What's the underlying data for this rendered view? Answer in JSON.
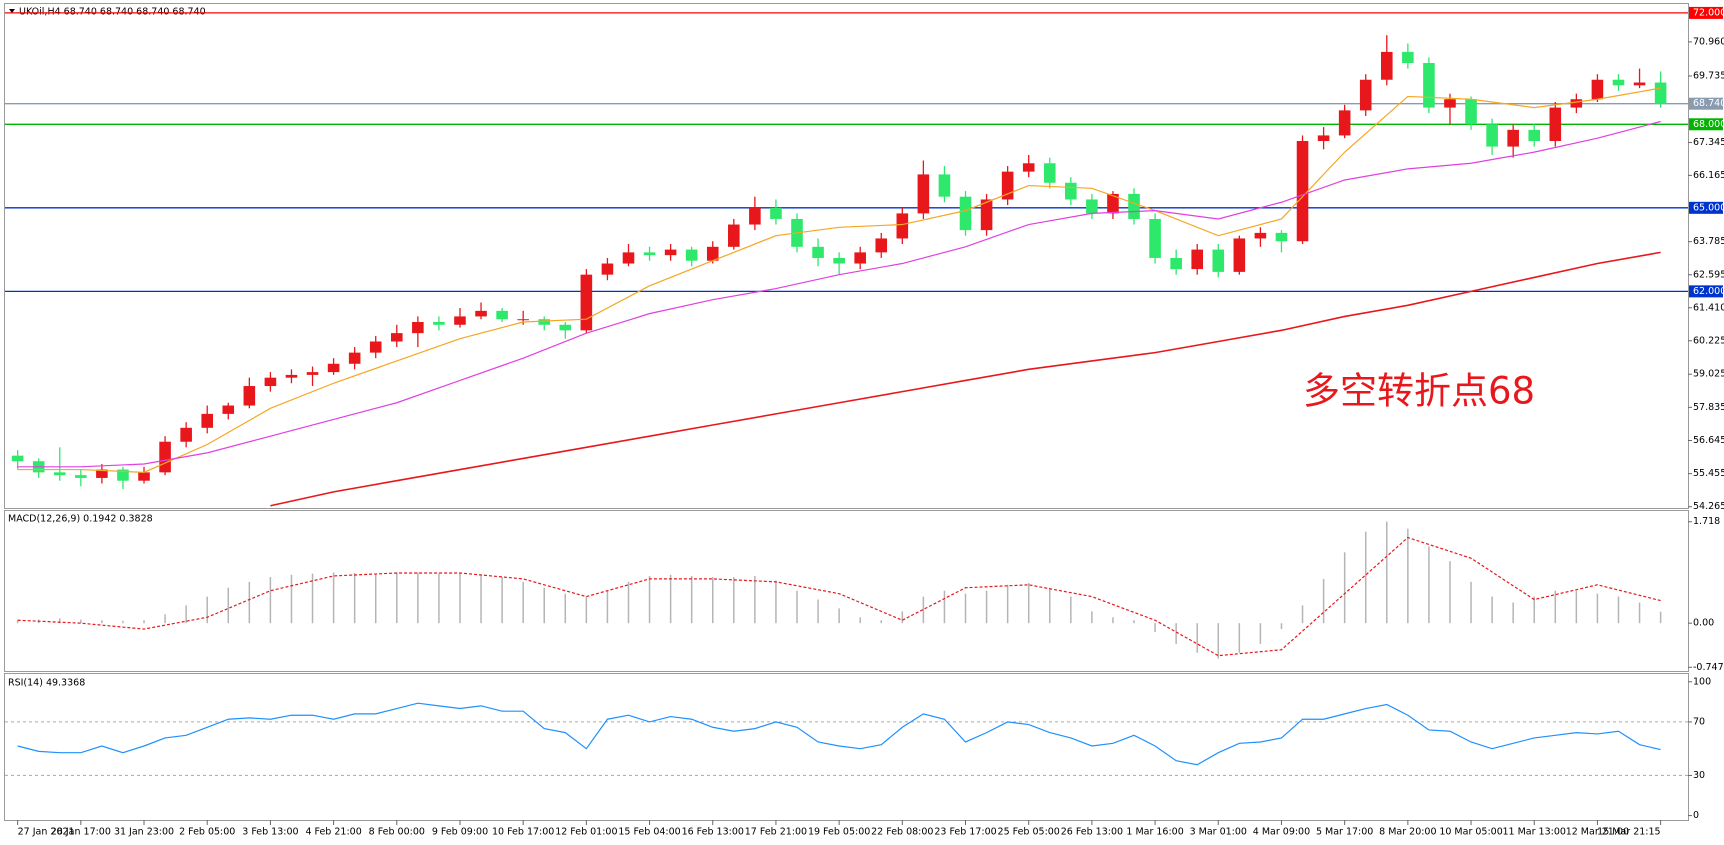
{
  "chart_data": [
    {
      "type": "candlestick",
      "title": "UKOil,H4 68.740 68.740 68.740 68.740",
      "annotation": "多空转折点68",
      "annotation_color": "#e8171b",
      "up_color": "#e8171b",
      "down_color": "#2ee86b",
      "xlim": [
        -0.6,
        79.3
      ],
      "ylim": [
        54.22,
        72.32
      ],
      "xticks": [
        {
          "value": 0,
          "label": "27 Jan 2021"
        },
        {
          "value": 3,
          "label": "28 Jan 17:00"
        },
        {
          "value": 6,
          "label": "31 Jan 23:00"
        },
        {
          "value": 9,
          "label": "2 Feb 05:00"
        },
        {
          "value": 12,
          "label": "3 Feb 13:00"
        },
        {
          "value": 15,
          "label": "4 Feb 21:00"
        },
        {
          "value": 18,
          "label": "8 Feb 00:00"
        },
        {
          "value": 21,
          "label": "9 Feb 09:00"
        },
        {
          "value": 24,
          "label": "10 Feb 17:00"
        },
        {
          "value": 27,
          "label": "12 Feb 01:00"
        },
        {
          "value": 30,
          "label": "15 Feb 04:00"
        },
        {
          "value": 33,
          "label": "16 Feb 13:00"
        },
        {
          "value": 36,
          "label": "17 Feb 21:00"
        },
        {
          "value": 39,
          "label": "19 Feb 05:00"
        },
        {
          "value": 42,
          "label": "22 Feb 08:00"
        },
        {
          "value": 45,
          "label": "23 Feb 17:00"
        },
        {
          "value": 48,
          "label": "25 Feb 05:00"
        },
        {
          "value": 51,
          "label": "26 Feb 13:00"
        },
        {
          "value": 54,
          "label": "1 Mar 16:00"
        },
        {
          "value": 57,
          "label": "3 Mar 01:00"
        },
        {
          "value": 60,
          "label": "4 Mar 09:00"
        },
        {
          "value": 63,
          "label": "5 Mar 17:00"
        },
        {
          "value": 66,
          "label": "8 Mar 20:00"
        },
        {
          "value": 69,
          "label": "10 Mar 05:00"
        },
        {
          "value": 72,
          "label": "11 Mar 13:00"
        },
        {
          "value": 75,
          "label": "12 Mar 21:00"
        },
        {
          "value": 78,
          "label": "15 Mar 21:15"
        }
      ],
      "yticks": [
        {
          "value": 70.96,
          "label": "70.960"
        },
        {
          "value": 69.735,
          "label": "69.735"
        },
        {
          "value": 67.345,
          "label": "67.345"
        },
        {
          "value": 66.165,
          "label": "66.165"
        },
        {
          "value": 63.785,
          "label": "63.785"
        },
        {
          "value": 62.595,
          "label": "62.595"
        },
        {
          "value": 61.41,
          "label": "61.410"
        },
        {
          "value": 60.225,
          "label": "60.225"
        },
        {
          "value": 59.025,
          "label": "59.025"
        },
        {
          "value": 57.835,
          "label": "57.835"
        },
        {
          "value": 56.645,
          "label": "56.645"
        },
        {
          "value": 55.455,
          "label": "55.455"
        },
        {
          "value": 54.265,
          "label": "54.265"
        }
      ],
      "levels": [
        {
          "value": 72,
          "label": "72.000",
          "color": "#ff0000"
        },
        {
          "value": 68.74,
          "label": "68.740",
          "color": "#8a9bb0"
        },
        {
          "value": 68,
          "label": "68.000",
          "color": "#00b400"
        },
        {
          "value": 65,
          "label": "65.000",
          "color": "#0033cc"
        },
        {
          "value": 62,
          "label": "62.000",
          "color": "#0033cc"
        }
      ],
      "series": [
        {
          "color": "#f5a623",
          "values": [
            55.6,
            55.6,
            55.5,
            56.5,
            57.8,
            58.7,
            59.5,
            60.3,
            60.9,
            61.0,
            62.2,
            63.1,
            64.0,
            64.3,
            64.4,
            64.9,
            65.8,
            65.7,
            64.9,
            64.0,
            64.6,
            67.0,
            69.0,
            68.9,
            68.6,
            68.9,
            69.3
          ]
        },
        {
          "color": "#e040e0",
          "values": [
            55.7,
            55.7,
            55.8,
            56.2,
            56.8,
            57.4,
            58.0,
            58.8,
            59.6,
            60.5,
            61.2,
            61.7,
            62.1,
            62.6,
            63.0,
            63.6,
            64.4,
            64.8,
            64.9,
            64.6,
            65.2,
            66.0,
            66.4,
            66.6,
            67.0,
            67.5,
            68.1
          ]
        },
        {
          "color": "#e8171b",
          "values": [
            null,
            null,
            null,
            null,
            54.3,
            54.8,
            55.2,
            55.6,
            56.0,
            56.4,
            56.8,
            57.2,
            57.6,
            58.0,
            58.4,
            58.8,
            59.2,
            59.5,
            59.8,
            60.2,
            60.6,
            61.1,
            61.5,
            62.0,
            62.5,
            63.0,
            63.4
          ]
        }
      ],
      "candles": [
        {
          "open": 56.1,
          "high": 56.3,
          "low": 55.6,
          "close": 55.9
        },
        {
          "open": 55.9,
          "high": 56.0,
          "low": 55.3,
          "close": 55.5
        },
        {
          "open": 55.5,
          "high": 56.4,
          "low": 55.2,
          "close": 55.4
        },
        {
          "open": 55.4,
          "high": 55.6,
          "low": 55.0,
          "close": 55.3
        },
        {
          "open": 55.3,
          "high": 55.8,
          "low": 55.1,
          "close": 55.6
        },
        {
          "open": 55.6,
          "high": 55.7,
          "low": 54.9,
          "close": 55.2
        },
        {
          "open": 55.2,
          "high": 55.7,
          "low": 55.1,
          "close": 55.5
        },
        {
          "open": 55.5,
          "high": 56.8,
          "low": 55.4,
          "close": 56.6
        },
        {
          "open": 56.6,
          "high": 57.3,
          "low": 56.4,
          "close": 57.1
        },
        {
          "open": 57.1,
          "high": 57.9,
          "low": 56.9,
          "close": 57.6
        },
        {
          "open": 57.6,
          "high": 58.0,
          "low": 57.4,
          "close": 57.9
        },
        {
          "open": 57.9,
          "high": 58.9,
          "low": 57.8,
          "close": 58.6
        },
        {
          "open": 58.6,
          "high": 59.1,
          "low": 58.4,
          "close": 58.9
        },
        {
          "open": 58.9,
          "high": 59.2,
          "low": 58.7,
          "close": 59.0
        },
        {
          "open": 59.0,
          "high": 59.3,
          "low": 58.6,
          "close": 59.1
        },
        {
          "open": 59.1,
          "high": 59.6,
          "low": 59.0,
          "close": 59.4
        },
        {
          "open": 59.4,
          "high": 60.0,
          "low": 59.2,
          "close": 59.8
        },
        {
          "open": 59.8,
          "high": 60.4,
          "low": 59.6,
          "close": 60.2
        },
        {
          "open": 60.2,
          "high": 60.8,
          "low": 60.0,
          "close": 60.5
        },
        {
          "open": 60.5,
          "high": 61.1,
          "low": 60.0,
          "close": 60.9
        },
        {
          "open": 60.9,
          "high": 61.1,
          "low": 60.6,
          "close": 60.8
        },
        {
          "open": 60.8,
          "high": 61.4,
          "low": 60.7,
          "close": 61.1
        },
        {
          "open": 61.1,
          "high": 61.6,
          "low": 61.0,
          "close": 61.3
        },
        {
          "open": 61.3,
          "high": 61.4,
          "low": 60.9,
          "close": 61.0
        },
        {
          "open": 61.0,
          "high": 61.3,
          "low": 60.8,
          "close": 61.0
        },
        {
          "open": 61.0,
          "high": 61.1,
          "low": 60.6,
          "close": 60.8
        },
        {
          "open": 60.8,
          "high": 60.9,
          "low": 60.3,
          "close": 60.6
        },
        {
          "open": 60.6,
          "high": 62.8,
          "low": 60.5,
          "close": 62.6
        },
        {
          "open": 62.6,
          "high": 63.2,
          "low": 62.4,
          "close": 63.0
        },
        {
          "open": 63.0,
          "high": 63.7,
          "low": 62.9,
          "close": 63.4
        },
        {
          "open": 63.4,
          "high": 63.6,
          "low": 63.1,
          "close": 63.3
        },
        {
          "open": 63.3,
          "high": 63.7,
          "low": 63.1,
          "close": 63.5
        },
        {
          "open": 63.5,
          "high": 63.6,
          "low": 62.9,
          "close": 63.1
        },
        {
          "open": 63.1,
          "high": 63.8,
          "low": 63.0,
          "close": 63.6
        },
        {
          "open": 63.6,
          "high": 64.6,
          "low": 63.5,
          "close": 64.4
        },
        {
          "open": 64.4,
          "high": 65.4,
          "low": 64.2,
          "close": 65.0
        },
        {
          "open": 65.0,
          "high": 65.3,
          "low": 64.4,
          "close": 64.6
        },
        {
          "open": 64.6,
          "high": 64.8,
          "low": 63.4,
          "close": 63.6
        },
        {
          "open": 63.6,
          "high": 63.9,
          "low": 62.9,
          "close": 63.2
        },
        {
          "open": 63.2,
          "high": 63.4,
          "low": 62.6,
          "close": 63.0
        },
        {
          "open": 63.0,
          "high": 63.6,
          "low": 62.8,
          "close": 63.4
        },
        {
          "open": 63.4,
          "high": 64.1,
          "low": 63.2,
          "close": 63.9
        },
        {
          "open": 63.9,
          "high": 65.0,
          "low": 63.7,
          "close": 64.8
        },
        {
          "open": 64.8,
          "high": 66.7,
          "low": 64.6,
          "close": 66.2
        },
        {
          "open": 66.2,
          "high": 66.5,
          "low": 65.2,
          "close": 65.4
        },
        {
          "open": 65.4,
          "high": 65.6,
          "low": 64.0,
          "close": 64.2
        },
        {
          "open": 64.2,
          "high": 65.5,
          "low": 64.0,
          "close": 65.3
        },
        {
          "open": 65.3,
          "high": 66.5,
          "low": 65.1,
          "close": 66.3
        },
        {
          "open": 66.3,
          "high": 66.9,
          "low": 66.1,
          "close": 66.6
        },
        {
          "open": 66.6,
          "high": 66.8,
          "low": 65.7,
          "close": 65.9
        },
        {
          "open": 65.9,
          "high": 66.1,
          "low": 65.1,
          "close": 65.3
        },
        {
          "open": 65.3,
          "high": 65.5,
          "low": 64.6,
          "close": 64.8
        },
        {
          "open": 64.8,
          "high": 65.6,
          "low": 64.6,
          "close": 65.5
        },
        {
          "open": 65.5,
          "high": 65.7,
          "low": 64.4,
          "close": 64.6
        },
        {
          "open": 64.6,
          "high": 64.8,
          "low": 63.0,
          "close": 63.2
        },
        {
          "open": 63.2,
          "high": 63.5,
          "low": 62.6,
          "close": 62.8
        },
        {
          "open": 62.8,
          "high": 63.7,
          "low": 62.6,
          "close": 63.5
        },
        {
          "open": 63.5,
          "high": 63.7,
          "low": 62.5,
          "close": 62.7
        },
        {
          "open": 62.7,
          "high": 64.0,
          "low": 62.6,
          "close": 63.9
        },
        {
          "open": 63.9,
          "high": 64.3,
          "low": 63.6,
          "close": 64.1
        },
        {
          "open": 64.1,
          "high": 64.2,
          "low": 63.4,
          "close": 63.8
        },
        {
          "open": 63.8,
          "high": 67.6,
          "low": 63.7,
          "close": 67.4
        },
        {
          "open": 67.4,
          "high": 67.9,
          "low": 67.1,
          "close": 67.6
        },
        {
          "open": 67.6,
          "high": 68.7,
          "low": 67.5,
          "close": 68.5
        },
        {
          "open": 68.5,
          "high": 69.8,
          "low": 68.3,
          "close": 69.6
        },
        {
          "open": 69.6,
          "high": 71.2,
          "low": 69.4,
          "close": 70.6
        },
        {
          "open": 70.6,
          "high": 70.9,
          "low": 70.0,
          "close": 70.2
        },
        {
          "open": 70.2,
          "high": 70.4,
          "low": 68.4,
          "close": 68.6
        },
        {
          "open": 68.6,
          "high": 69.1,
          "low": 68.0,
          "close": 68.9
        },
        {
          "open": 68.9,
          "high": 69.0,
          "low": 67.8,
          "close": 68.0
        },
        {
          "open": 68.0,
          "high": 68.2,
          "low": 66.9,
          "close": 67.2
        },
        {
          "open": 67.2,
          "high": 68.0,
          "low": 66.8,
          "close": 67.8
        },
        {
          "open": 67.8,
          "high": 68.0,
          "low": 67.2,
          "close": 67.4
        },
        {
          "open": 67.4,
          "high": 68.8,
          "low": 67.2,
          "close": 68.6
        },
        {
          "open": 68.6,
          "high": 69.1,
          "low": 68.4,
          "close": 68.9
        },
        {
          "open": 68.9,
          "high": 69.8,
          "low": 68.8,
          "close": 69.6
        },
        {
          "open": 69.6,
          "high": 69.8,
          "low": 69.2,
          "close": 69.4
        },
        {
          "open": 69.4,
          "high": 70.0,
          "low": 69.3,
          "close": 69.5
        },
        {
          "open": 69.5,
          "high": 69.9,
          "low": 68.6,
          "close": 68.74
        }
      ]
    },
    {
      "type": "macd",
      "title": "MACD(12,26,9) 0.1942 0.3828",
      "ylim": [
        -0.81,
        1.9
      ],
      "yticks": [
        1.718,
        {
          "value": 0,
          "label": "0.00"
        },
        -0.7475
      ],
      "histogram": {
        "color": "#b4b4b4",
        "values": [
          0.05,
          0.06,
          0.08,
          0.06,
          0.05,
          0.04,
          0.05,
          0.15,
          0.3,
          0.45,
          0.6,
          0.7,
          0.78,
          0.82,
          0.84,
          0.86,
          0.85,
          0.84,
          0.86,
          0.86,
          0.84,
          0.85,
          0.83,
          0.78,
          0.7,
          0.6,
          0.5,
          0.45,
          0.55,
          0.7,
          0.8,
          0.82,
          0.8,
          0.78,
          0.78,
          0.8,
          0.72,
          0.55,
          0.4,
          0.25,
          0.1,
          0.05,
          0.2,
          0.45,
          0.55,
          0.5,
          0.55,
          0.65,
          0.68,
          0.6,
          0.45,
          0.2,
          0.1,
          0.05,
          -0.15,
          -0.35,
          -0.5,
          -0.6,
          -0.5,
          -0.35,
          -0.1,
          0.3,
          0.75,
          1.2,
          1.55,
          1.72,
          1.6,
          1.3,
          1.05,
          0.7,
          0.45,
          0.35,
          0.45,
          0.55,
          0.55,
          0.5,
          0.45,
          0.35,
          0.1942
        ]
      },
      "signal": {
        "color": "#e8171b",
        "values": [
          0.05,
          0.0,
          -0.1,
          0.1,
          0.55,
          0.8,
          0.85,
          0.85,
          0.75,
          0.45,
          0.75,
          0.75,
          0.7,
          0.5,
          0.05,
          0.6,
          0.65,
          0.45,
          0.05,
          -0.55,
          -0.45,
          0.5,
          1.45,
          1.1,
          0.4,
          0.65,
          0.3828
        ]
      }
    },
    {
      "type": "line",
      "title": "RSI(14) 49.3368",
      "ylim": [
        -3.3,
        105.8
      ],
      "yticks": [
        100,
        70,
        30,
        0
      ],
      "levels": [
        70,
        30
      ],
      "color": "#1e90ff",
      "values": [
        52,
        48,
        47,
        47,
        52,
        47,
        52,
        58,
        60,
        66,
        72,
        73,
        72,
        75,
        75,
        72,
        76,
        76,
        80,
        84,
        82,
        80,
        82,
        78,
        78,
        65,
        62,
        50,
        72,
        75,
        70,
        74,
        72,
        66,
        63,
        65,
        70,
        66,
        55,
        52,
        50,
        53,
        66,
        76,
        72,
        55,
        62,
        70,
        68,
        62,
        58,
        52,
        54,
        60,
        52,
        41,
        38,
        47,
        54,
        55,
        58,
        72,
        72,
        76,
        80,
        83,
        75,
        64,
        63,
        55,
        50,
        54,
        58,
        60,
        62,
        61,
        63,
        53,
        49.3368
      ]
    }
  ]
}
